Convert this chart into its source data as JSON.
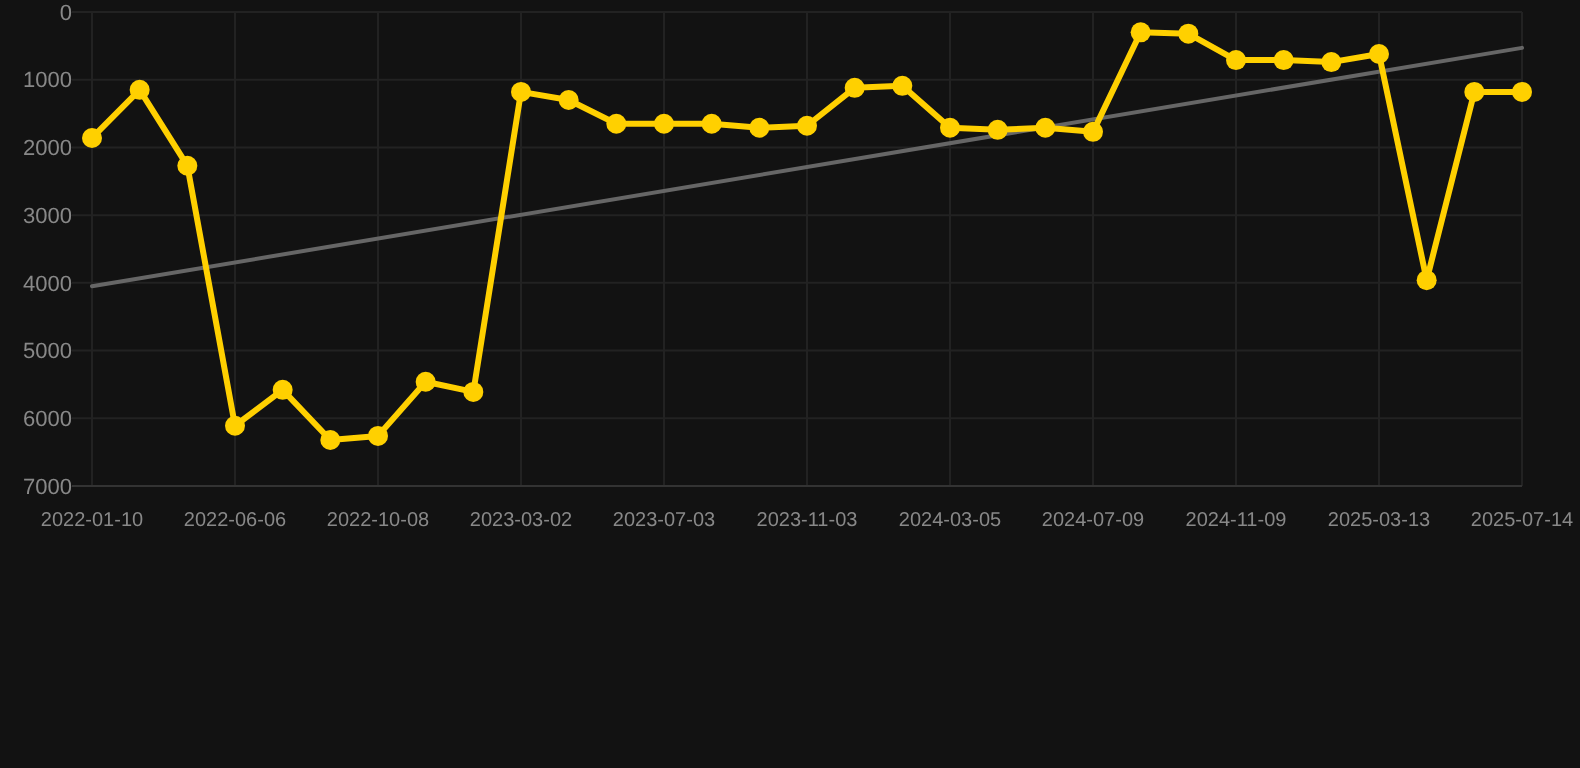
{
  "chart_data": {
    "type": "line",
    "categories": [
      "2022-01-10",
      null,
      null,
      "2022-06-06",
      null,
      null,
      "2022-10-08",
      null,
      null,
      "2023-03-02",
      null,
      null,
      "2023-07-03",
      null,
      null,
      "2023-11-03",
      null,
      null,
      "2024-03-05",
      null,
      null,
      "2024-07-09",
      null,
      null,
      "2024-11-09",
      null,
      null,
      "2025-03-13",
      null,
      null,
      "2025-07-14"
    ],
    "series": [
      {
        "color": "#ffd000",
        "marker": "circle",
        "values": [
          1860,
          1150,
          2270,
          6110,
          5580,
          6320,
          6260,
          5460,
          5610,
          1180,
          1300,
          1650,
          1650,
          1650,
          1710,
          1680,
          1120,
          1090,
          1710,
          1740,
          1710,
          1770,
          300,
          320,
          710,
          710,
          740,
          620,
          3960,
          1180,
          1180
        ]
      },
      {
        "type": "line",
        "color": "#666666",
        "marker": "none",
        "values": [
          4050,
          null,
          null,
          null,
          null,
          null,
          null,
          null,
          null,
          null,
          null,
          null,
          null,
          null,
          null,
          null,
          null,
          null,
          null,
          null,
          null,
          null,
          null,
          null,
          null,
          null,
          null,
          null,
          null,
          null,
          530
        ]
      }
    ],
    "ylim": [
      7000,
      0
    ],
    "yticks": [
      0,
      1000,
      2000,
      3000,
      4000,
      5000,
      6000,
      7000
    ],
    "grid": true
  }
}
